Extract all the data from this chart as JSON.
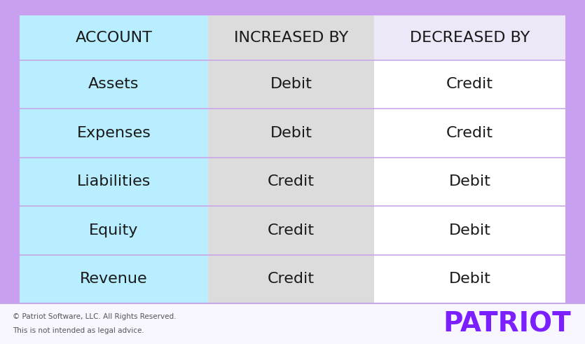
{
  "fig_width": 8.35,
  "fig_height": 4.91,
  "bg_color": "#c9a0f0",
  "table_outer_bg": "#ede8f8",
  "col1_bg": "#b8eeff",
  "col2_bg": "#dcdcdc",
  "col3_bg": "#ffffff",
  "sep_color": "#c8a8e8",
  "header_labels": [
    "ACCOUNT",
    "INCREASED BY",
    "DECREASED BY"
  ],
  "rows": [
    [
      "Assets",
      "Debit",
      "Credit"
    ],
    [
      "Expenses",
      "Debit",
      "Credit"
    ],
    [
      "Liabilities",
      "Credit",
      "Debit"
    ],
    [
      "Equity",
      "Credit",
      "Debit"
    ],
    [
      "Revenue",
      "Credit",
      "Debit"
    ]
  ],
  "font_size_header": 16,
  "font_size_cell": 16,
  "footer_text_line1": "© Patriot Software, LLC. All Rights Reserved.",
  "footer_text_line2": "This is not intended as legal advice.",
  "footer_font_size": 7.5,
  "logo_text": "PATRIOT",
  "logo_color": "#7b1fff",
  "logo_font_size": 28,
  "text_color": "#1a1a1a",
  "footer_bg": "#f8f6ff"
}
